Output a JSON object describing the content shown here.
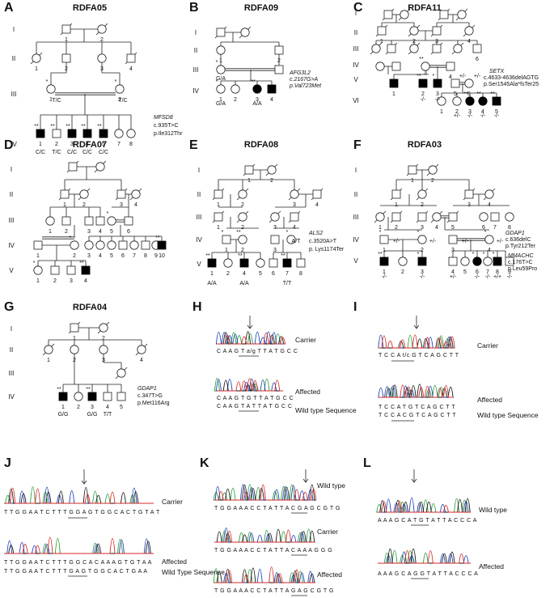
{
  "panels": {
    "A": {
      "letter": "A",
      "title": "RDFA05",
      "generations": [
        "I",
        "II",
        "III",
        "IV"
      ],
      "gene": "MFSD8",
      "cdna": "c.935T>C",
      "protein": "p.Ile312Thr",
      "genotypes": [
        "C/C",
        "T/C",
        "C/C",
        "C/C",
        "C/C"
      ],
      "parent_genotypes": [
        "T/C",
        "T/C"
      ]
    },
    "B": {
      "letter": "B",
      "title": "RDFA09",
      "generations": [
        "I",
        "II",
        "III",
        "IV"
      ],
      "gene": "AFG3L2",
      "cdna": "c.2167G>A",
      "protein": "p.Val723Met",
      "genotypes": [
        "G/A",
        "G/A",
        "A/A"
      ]
    },
    "C": {
      "letter": "C",
      "title": "RDFA11",
      "generations": [
        "I",
        "II",
        "III",
        "IV",
        "V",
        "VI"
      ],
      "gene": "SETX",
      "cdna": "c.4633-4636delAGTG",
      "protein": "p.Ser1545Ala*fsTer25",
      "genotypes": [
        "-/-",
        "-/-",
        "+/-",
        "+/-",
        "+/-",
        "-/-",
        "-/-",
        "-/-"
      ]
    },
    "D": {
      "letter": "D",
      "title": "RDFA07",
      "generations": [
        "I",
        "II",
        "III",
        "IV",
        "V"
      ]
    },
    "E": {
      "letter": "E",
      "title": "RDFA08",
      "generations": [
        "I",
        "II",
        "III",
        "IV",
        "V"
      ],
      "gene": "ALS2",
      "cdna": "c.3520A>T",
      "protein": "p. Lys1174Ter",
      "genotypes": [
        "A/A",
        "A/A",
        "T/T",
        "A/T"
      ]
    },
    "F": {
      "letter": "F",
      "title": "RDFA03",
      "generations": [
        "I",
        "II",
        "III",
        "IV",
        "V"
      ],
      "gene": "GDAP1",
      "cdna": "c.636delC",
      "protein": "p.Tyr212Ter",
      "gene2": "MMACHC",
      "cdna2": "c.176T>C",
      "protein2": "p.Leu59Pro",
      "genotypes": [
        "+/-",
        "+/-",
        "+/-",
        "+/-",
        "-/-",
        "-/-",
        "+/-",
        "-/-",
        "-/-",
        "+/+",
        "-/-",
        "+/-"
      ]
    },
    "G": {
      "letter": "G",
      "title": "RDFA04",
      "generations": [
        "I",
        "II",
        "III",
        "IV"
      ],
      "gene": "GDAP1",
      "cdna": "c.347T>G",
      "protein": "p.Met116Arg",
      "genotypes": [
        "G/G",
        "G/G",
        "T/T"
      ]
    },
    "H": {
      "letter": "H",
      "labels": [
        "Carrier",
        "Affected",
        "Wild type Sequence"
      ],
      "sequences": [
        "C A A G T a/g T T A T G C C",
        "C A A G T G T T A T G C C",
        "C A A G T A T T A T G C C"
      ]
    },
    "I": {
      "letter": "I",
      "labels": [
        "Carrier",
        "Affected",
        "Wild type Sequence"
      ],
      "sequences": [
        "T C C A t/c G T C A G C T T",
        "T C C A T G T C A G C T T",
        "T C C A C G T C A G C T T"
      ]
    },
    "J": {
      "letter": "J",
      "labels": [
        "Carrier",
        "Affected",
        "Wild Type Sequence"
      ],
      "sequences": [
        "T T G G A A T C T T T G G A G T G G C A C T G T A T",
        "T T G G A A T C T T T G G C A C A A A G T G T A A",
        "T T G G A A T C T T T G A G T G G C A C T G A A"
      ]
    },
    "K": {
      "letter": "K",
      "labels": [
        "Wild type",
        "Carrier",
        "Affected"
      ],
      "sequences": [
        "T G G A A A C C T A T T A C G A G C G T G",
        "T G G A A A C C T A T T A C A A A G G G",
        "T G G A A A C C T A T T A G A G C G T G"
      ]
    },
    "L": {
      "letter": "L",
      "labels": [
        "Wild type",
        "Affected"
      ],
      "sequences": [
        "A A A G C A T G T A T T A C C C A",
        "A A A G C A G G T A T T A C C C A"
      ]
    }
  },
  "colors": {
    "trace_a": "#2a9d3a",
    "trace_c": "#1f3fb4",
    "trace_g": "#111111",
    "trace_t": "#d62828",
    "affected": "#000000"
  }
}
